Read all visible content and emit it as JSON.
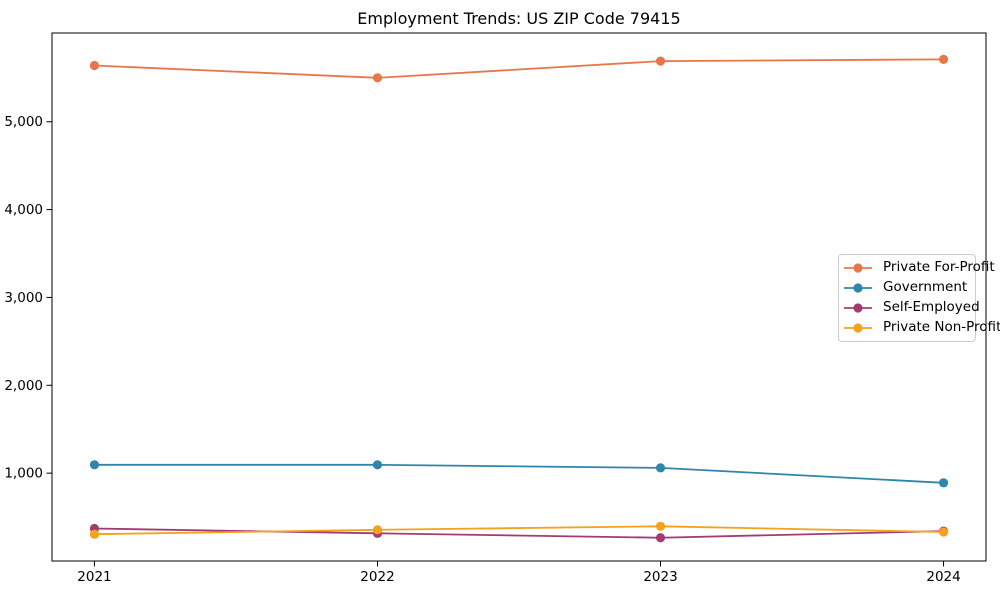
{
  "chart_data": {
    "type": "line",
    "title": "Employment Trends: US ZIP Code 79415",
    "x": [
      2021,
      2022,
      2023,
      2024
    ],
    "xtick_labels": [
      "2021",
      "2022",
      "2023",
      "2024"
    ],
    "series": [
      {
        "name": "Private For-Profit",
        "color": "#E8764B",
        "values": [
          5640,
          5500,
          5690,
          5710
        ]
      },
      {
        "name": "Government",
        "color": "#2E86AB",
        "values": [
          1095,
          1095,
          1060,
          890
        ]
      },
      {
        "name": "Self-Employed",
        "color": "#A23B72",
        "values": [
          370,
          315,
          265,
          340
        ]
      },
      {
        "name": "Private Non-Profit",
        "color": "#F5A11C",
        "values": [
          305,
          355,
          395,
          330
        ]
      }
    ],
    "xlabel": "",
    "ylabel": "",
    "xlim": [
      2020.85,
      2024.15
    ],
    "ylim": [
      0,
      6010
    ],
    "yticks": [
      1000,
      2000,
      3000,
      4000,
      5000
    ],
    "ytick_labels": [
      "1,000",
      "2,000",
      "3,000",
      "4,000",
      "5,000"
    ],
    "grid": false,
    "legend_position": "center-right",
    "marker": "circle",
    "line_width": 1.8,
    "marker_radius": 4.6,
    "axis_color": "#000000",
    "background_color": "#ffffff"
  }
}
